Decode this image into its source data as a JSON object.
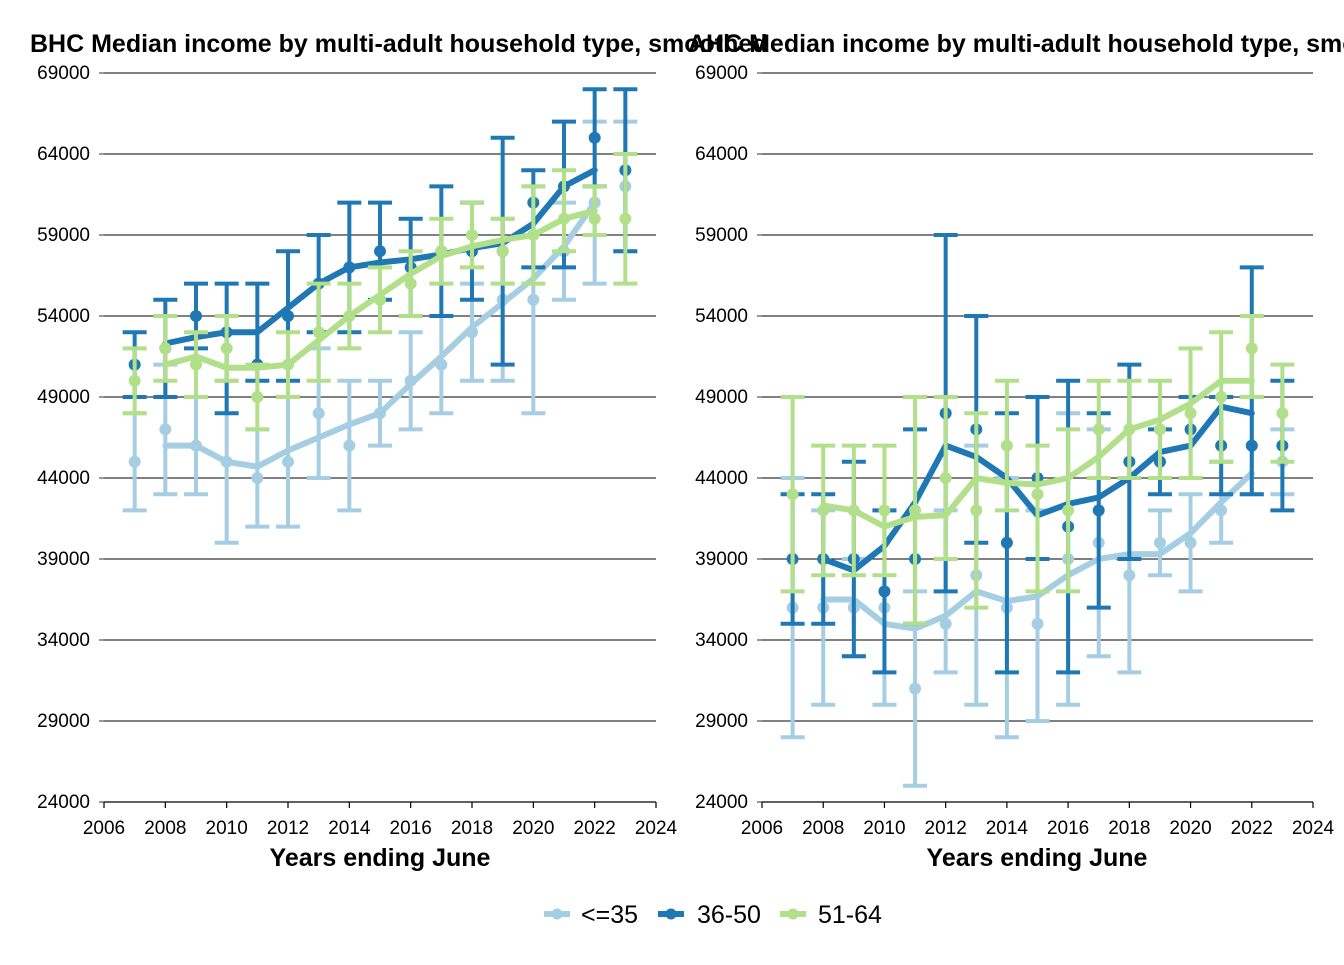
{
  "colors": {
    "<=35": "#a6cee3",
    "36-50": "#1f78b4",
    "51-64": "#b2df8a"
  },
  "legend": {
    "items": [
      "<=35",
      "36-50",
      "51-64"
    ]
  },
  "chart_data": [
    {
      "type": "line",
      "title": "BHC Median income by multi-adult household type, smoothed",
      "xlabel": "Years ending June",
      "ylabel": "",
      "xlim": [
        2006,
        2024
      ],
      "ylim": [
        24000,
        69000
      ],
      "x_ticks": [
        "2006",
        "2008",
        "2010",
        "2012",
        "2014",
        "2016",
        "2018",
        "2020",
        "2022",
        "2024"
      ],
      "y_ticks": [
        "24000",
        "29000",
        "34000",
        "39000",
        "44000",
        "49000",
        "54000",
        "59000",
        "64000",
        "69000"
      ],
      "grid": "horizontal",
      "legend_position": "bottom",
      "series": [
        {
          "name": "<=35",
          "x": [
            2007,
            2008,
            2009,
            2010,
            2011,
            2012,
            2013,
            2014,
            2015,
            2016,
            2017,
            2018,
            2019,
            2020,
            2021,
            2022,
            2023
          ],
          "points": [
            45000,
            47000,
            46000,
            45000,
            44000,
            45000,
            48000,
            46000,
            48000,
            50000,
            51000,
            53000,
            55000,
            55000,
            58000,
            61000,
            62000
          ],
          "lower": [
            42000,
            43000,
            43000,
            40000,
            41000,
            41000,
            44000,
            42000,
            46000,
            47000,
            48000,
            50000,
            50000,
            48000,
            55000,
            56000,
            58000
          ],
          "upper": [
            48000,
            51000,
            49000,
            50000,
            47000,
            49000,
            52000,
            50000,
            50000,
            53000,
            54000,
            56000,
            60000,
            62000,
            61000,
            66000,
            66000
          ],
          "smoothed_x": [
            2008,
            2009,
            2010,
            2011,
            2012,
            2013,
            2014,
            2015,
            2016,
            2017,
            2018,
            2019,
            2020,
            2021,
            2022
          ],
          "smoothed": [
            46000,
            46000,
            45000,
            44700,
            45700,
            46500,
            47300,
            48000,
            49800,
            51500,
            53300,
            54800,
            56300,
            58300,
            61000
          ]
        },
        {
          "name": "36-50",
          "x": [
            2007,
            2008,
            2009,
            2010,
            2011,
            2012,
            2013,
            2014,
            2015,
            2016,
            2017,
            2018,
            2019,
            2020,
            2021,
            2022,
            2023
          ],
          "points": [
            51000,
            52000,
            54000,
            53000,
            51000,
            54000,
            56000,
            57000,
            58000,
            57000,
            58000,
            58000,
            58000,
            61000,
            62000,
            65000,
            63000
          ],
          "lower": [
            49000,
            49000,
            52000,
            48000,
            50000,
            50000,
            53000,
            53000,
            55000,
            54000,
            54000,
            55000,
            51000,
            57000,
            57000,
            62000,
            58000
          ],
          "upper": [
            53000,
            55000,
            56000,
            56000,
            56000,
            58000,
            59000,
            61000,
            61000,
            60000,
            62000,
            61000,
            65000,
            63000,
            66000,
            68000,
            68000
          ],
          "smoothed_x": [
            2008,
            2009,
            2010,
            2011,
            2012,
            2013,
            2014,
            2015,
            2016,
            2017,
            2018,
            2019,
            2020,
            2021,
            2022
          ],
          "smoothed": [
            52300,
            52700,
            53000,
            53000,
            54500,
            56000,
            57000,
            57300,
            57500,
            57800,
            58200,
            58500,
            59700,
            62000,
            63000
          ]
        },
        {
          "name": "51-64",
          "x": [
            2007,
            2008,
            2009,
            2010,
            2011,
            2012,
            2013,
            2014,
            2015,
            2016,
            2017,
            2018,
            2019,
            2020,
            2021,
            2022,
            2023
          ],
          "points": [
            50000,
            52000,
            51000,
            52000,
            49000,
            51000,
            53000,
            54000,
            55000,
            56000,
            58000,
            59000,
            58000,
            59000,
            60000,
            60000,
            60000
          ],
          "lower": [
            48000,
            50000,
            49000,
            50000,
            47000,
            49000,
            50000,
            52000,
            53000,
            54000,
            56000,
            57000,
            56000,
            56000,
            58000,
            59000,
            56000
          ],
          "upper": [
            52000,
            54000,
            53000,
            54000,
            51000,
            53000,
            56000,
            56000,
            57000,
            58000,
            60000,
            61000,
            60000,
            62000,
            63000,
            62000,
            64000
          ],
          "smoothed_x": [
            2008,
            2009,
            2010,
            2011,
            2012,
            2013,
            2014,
            2015,
            2016,
            2017,
            2018,
            2019,
            2020,
            2021,
            2022
          ],
          "smoothed": [
            51000,
            51500,
            50800,
            50800,
            51000,
            52500,
            54000,
            55300,
            56600,
            57700,
            58300,
            58700,
            59000,
            60000,
            60500
          ]
        }
      ]
    },
    {
      "type": "line",
      "title": "AHC Median income by multi-adult household type, smoothed",
      "xlabel": "Years ending June",
      "ylabel": "",
      "xlim": [
        2006,
        2024
      ],
      "ylim": [
        24000,
        69000
      ],
      "x_ticks": [
        "2006",
        "2008",
        "2010",
        "2012",
        "2014",
        "2016",
        "2018",
        "2020",
        "2022",
        "2024"
      ],
      "y_ticks": [
        "24000",
        "29000",
        "34000",
        "39000",
        "44000",
        "49000",
        "54000",
        "59000",
        "64000",
        "69000"
      ],
      "grid": "horizontal",
      "legend_position": "bottom",
      "series": [
        {
          "name": "<=35",
          "x": [
            2007,
            2008,
            2009,
            2010,
            2011,
            2012,
            2013,
            2014,
            2015,
            2016,
            2017,
            2018,
            2019,
            2020,
            2021,
            2022,
            2023
          ],
          "points": [
            36000,
            36000,
            36000,
            36000,
            31000,
            35000,
            38000,
            36000,
            35000,
            39000,
            40000,
            38000,
            40000,
            40000,
            42000,
            46000,
            45000
          ],
          "lower": [
            28000,
            30000,
            33000,
            30000,
            25000,
            32000,
            30000,
            28000,
            29000,
            30000,
            33000,
            32000,
            38000,
            37000,
            40000,
            43000,
            43000
          ],
          "upper": [
            44000,
            42000,
            39000,
            42000,
            37000,
            42000,
            46000,
            44000,
            42000,
            48000,
            47000,
            44000,
            42000,
            43000,
            45000,
            49000,
            47000
          ],
          "smoothed_x": [
            2008,
            2009,
            2010,
            2011,
            2012,
            2013,
            2014,
            2015,
            2016,
            2017,
            2018,
            2019,
            2020,
            2021,
            2022
          ],
          "smoothed": [
            36500,
            36500,
            35000,
            34700,
            35500,
            37000,
            36400,
            36700,
            38000,
            39000,
            39300,
            39300,
            40600,
            42500,
            44300
          ]
        },
        {
          "name": "36-50",
          "x": [
            2007,
            2008,
            2009,
            2010,
            2011,
            2012,
            2013,
            2014,
            2015,
            2016,
            2017,
            2018,
            2019,
            2020,
            2021,
            2022,
            2023
          ],
          "points": [
            39000,
            39000,
            39000,
            37000,
            39000,
            48000,
            47000,
            40000,
            44000,
            41000,
            42000,
            45000,
            45000,
            47000,
            46000,
            46000,
            46000
          ],
          "lower": [
            35000,
            35000,
            33000,
            32000,
            35000,
            37000,
            40000,
            32000,
            39000,
            32000,
            36000,
            39000,
            43000,
            44000,
            43000,
            43000,
            42000
          ],
          "upper": [
            43000,
            43000,
            45000,
            42000,
            47000,
            59000,
            54000,
            48000,
            49000,
            50000,
            48000,
            51000,
            47000,
            49000,
            49000,
            57000,
            50000
          ],
          "smoothed_x": [
            2008,
            2009,
            2010,
            2011,
            2012,
            2013,
            2014,
            2015,
            2016,
            2017,
            2018,
            2019,
            2020,
            2021,
            2022
          ],
          "smoothed": [
            39000,
            38300,
            39800,
            42500,
            46000,
            45300,
            44000,
            41700,
            42400,
            42800,
            44000,
            45600,
            46000,
            48400,
            48000
          ]
        },
        {
          "name": "51-64",
          "x": [
            2007,
            2008,
            2009,
            2010,
            2011,
            2012,
            2013,
            2014,
            2015,
            2016,
            2017,
            2018,
            2019,
            2020,
            2021,
            2022,
            2023
          ],
          "points": [
            43000,
            42000,
            42000,
            42000,
            42000,
            44000,
            42000,
            46000,
            43000,
            42000,
            47000,
            47000,
            47000,
            48000,
            49000,
            52000,
            48000
          ],
          "lower": [
            37000,
            38000,
            38000,
            38000,
            35000,
            39000,
            36000,
            42000,
            37000,
            37000,
            44000,
            44000,
            44000,
            44000,
            45000,
            49000,
            45000
          ],
          "upper": [
            49000,
            46000,
            46000,
            46000,
            49000,
            49000,
            48000,
            50000,
            46000,
            47000,
            50000,
            50000,
            50000,
            52000,
            53000,
            54000,
            51000
          ],
          "smoothed_x": [
            2008,
            2009,
            2010,
            2011,
            2012,
            2013,
            2014,
            2015,
            2016,
            2017,
            2018,
            2019,
            2020,
            2021,
            2022
          ],
          "smoothed": [
            42300,
            42000,
            41000,
            41600,
            41700,
            44000,
            43700,
            43600,
            44000,
            45300,
            47000,
            47600,
            48600,
            50000,
            50000
          ]
        }
      ]
    }
  ]
}
